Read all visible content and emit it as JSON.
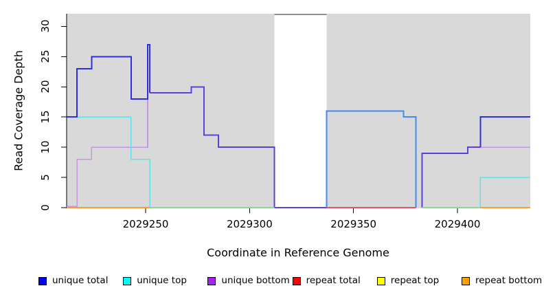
{
  "chart_data": {
    "type": "line",
    "title": "",
    "xlabel": "Coordinate in Reference Genome",
    "ylabel": "Read Coverage Depth",
    "x_ticks": [
      2029250,
      2029300,
      2029350,
      2029400
    ],
    "y_ticks": [
      0,
      5,
      10,
      15,
      20,
      25,
      30
    ],
    "xlim": [
      2029212,
      2029435
    ],
    "ylim": [
      0,
      32.1
    ],
    "grid": false,
    "plot_bg": "#d9d9d9",
    "legend_position": "bottom",
    "masked_region": {
      "from": 2029312,
      "to": 2029337,
      "clipped_line_value": 32,
      "clipped_line_color": "#8f8f8f"
    },
    "legend": [
      {
        "label": "unique total",
        "color": "#0000ff"
      },
      {
        "label": "unique top",
        "color": "#00ffff"
      },
      {
        "label": "unique bottom",
        "color": "#a621f2"
      },
      {
        "label": "repeat total",
        "color": "#ff0000"
      },
      {
        "label": "repeat top",
        "color": "#ffff00"
      },
      {
        "label": "repeat bottom",
        "color": "#ffa100"
      }
    ],
    "series": [
      {
        "name": "unique total",
        "step_points": [
          [
            2029212,
            15
          ],
          [
            2029217,
            23
          ],
          [
            2029224,
            25
          ],
          [
            2029243,
            18
          ],
          [
            2029251,
            27
          ],
          [
            2029252,
            19
          ],
          [
            2029272,
            20
          ],
          [
            2029278,
            12
          ],
          [
            2029285,
            10
          ],
          [
            2029312,
            0
          ],
          [
            2029337,
            16
          ],
          [
            2029374,
            15
          ],
          [
            2029380,
            0
          ],
          [
            2029383,
            9
          ],
          [
            2029405,
            10
          ],
          [
            2029411,
            15
          ],
          [
            2029435,
            15
          ]
        ]
      },
      {
        "name": "unique top",
        "step_points": [
          [
            2029212,
            15
          ],
          [
            2029243,
            8
          ],
          [
            2029252,
            0
          ],
          [
            2029337,
            16
          ],
          [
            2029374,
            15
          ],
          [
            2029380,
            0
          ],
          [
            2029411,
            5
          ],
          [
            2029435,
            5
          ]
        ]
      },
      {
        "name": "unique bottom",
        "step_points": [
          [
            2029212,
            0
          ],
          [
            2029217,
            8
          ],
          [
            2029224,
            10
          ],
          [
            2029251,
            19
          ],
          [
            2029272,
            20
          ],
          [
            2029278,
            12
          ],
          [
            2029285,
            10
          ],
          [
            2029312,
            0
          ],
          [
            2029383,
            9
          ],
          [
            2029405,
            10
          ],
          [
            2029435,
            10
          ]
        ]
      },
      {
        "name": "repeat total",
        "step_points": [
          [
            2029212,
            0
          ],
          [
            2029435,
            0
          ]
        ]
      },
      {
        "name": "repeat top",
        "step_points": [
          [
            2029212,
            0
          ],
          [
            2029435,
            0
          ]
        ]
      },
      {
        "name": "repeat bottom",
        "step_points": [
          [
            2029212,
            0
          ],
          [
            2029435,
            0
          ]
        ]
      }
    ],
    "rendered_segments": [
      {
        "name": "unique-bottom-left",
        "color": "#c795e2",
        "width": 1.6,
        "points": [
          [
            2029212,
            0.2
          ],
          [
            2029217,
            0.2
          ],
          [
            2029217,
            8
          ],
          [
            2029224,
            8
          ],
          [
            2029224,
            10
          ],
          [
            2029251,
            10
          ],
          [
            2029251,
            19
          ]
        ]
      },
      {
        "name": "unique-top-left",
        "color": "#5ee4e6",
        "width": 1.6,
        "points": [
          [
            2029212,
            15
          ],
          [
            2029243,
            15
          ],
          [
            2029243,
            8
          ],
          [
            2029252,
            8
          ],
          [
            2029252,
            0
          ]
        ]
      },
      {
        "name": "unique-total-left",
        "color": "#2e2ee4",
        "width": 2,
        "points": [
          [
            2029212,
            15
          ],
          [
            2029217,
            15
          ],
          [
            2029217,
            23
          ],
          [
            2029224,
            23
          ],
          [
            2029224,
            25
          ],
          [
            2029243,
            25
          ],
          [
            2029243,
            18
          ],
          [
            2029251,
            18
          ],
          [
            2029251,
            27
          ],
          [
            2029252,
            27
          ],
          [
            2029252,
            19
          ]
        ]
      },
      {
        "name": "total-equals-bottom-mid",
        "color": "#5e3fd9",
        "width": 2,
        "points": [
          [
            2029252,
            19
          ],
          [
            2029272,
            19
          ],
          [
            2029272,
            20
          ],
          [
            2029278,
            20
          ],
          [
            2029278,
            12
          ],
          [
            2029285,
            12
          ],
          [
            2029285,
            10
          ],
          [
            2029312,
            10
          ],
          [
            2029312,
            0
          ],
          [
            2029337,
            0
          ]
        ]
      },
      {
        "name": "repeat-total-baseline",
        "color": "#e85068",
        "width": 1.6,
        "points": [
          [
            2029337,
            0
          ],
          [
            2029380,
            0
          ]
        ]
      },
      {
        "name": "total-equals-top-after-gap",
        "color": "#4588f0",
        "width": 2,
        "points": [
          [
            2029337,
            0
          ],
          [
            2029337,
            16
          ],
          [
            2029374,
            16
          ],
          [
            2029374,
            15
          ],
          [
            2029380,
            15
          ],
          [
            2029380,
            0
          ]
        ]
      },
      {
        "name": "unique-bottom-right",
        "color": "#c795e2",
        "width": 1.6,
        "points": [
          [
            2029405,
            10
          ],
          [
            2029435,
            10
          ]
        ]
      },
      {
        "name": "total-equals-bottom-right",
        "color": "#5e3fd9",
        "width": 2,
        "points": [
          [
            2029383,
            0
          ],
          [
            2029383,
            9
          ],
          [
            2029405,
            9
          ],
          [
            2029405,
            10
          ],
          [
            2029411,
            10
          ]
        ]
      },
      {
        "name": "unique-total-right",
        "color": "#2e2ee4",
        "width": 2,
        "points": [
          [
            2029411,
            10
          ],
          [
            2029411,
            15
          ],
          [
            2029435,
            15
          ]
        ]
      },
      {
        "name": "unique-top-right",
        "color": "#5ee4e6",
        "width": 1.6,
        "points": [
          [
            2029411,
            0
          ],
          [
            2029411,
            5
          ],
          [
            2029435,
            5
          ]
        ]
      },
      {
        "name": "baseline-green-left",
        "color": "#93d693",
        "width": 1.6,
        "points": [
          [
            2029252,
            0
          ],
          [
            2029312,
            0
          ]
        ]
      },
      {
        "name": "baseline-green-right",
        "color": "#93d693",
        "width": 1.6,
        "points": [
          [
            2029383,
            0
          ],
          [
            2029411,
            0
          ]
        ]
      },
      {
        "name": "repeat-bottom-baseline-left",
        "color": "#ff9e26",
        "width": 2,
        "points": [
          [
            2029212,
            0
          ],
          [
            2029252,
            0
          ]
        ]
      },
      {
        "name": "repeat-bottom-baseline-right",
        "color": "#ff9e26",
        "width": 2,
        "points": [
          [
            2029411,
            0
          ],
          [
            2029435,
            0
          ]
        ]
      }
    ]
  }
}
